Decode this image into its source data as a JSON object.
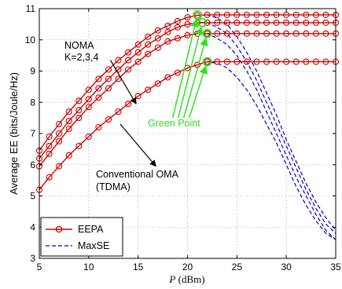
{
  "chart_data": {
    "type": "line",
    "xlabel_symbol": "P",
    "xlabel_unit": " (dBm)",
    "ylabel": "Average EE (bits/Joule/Hz)",
    "xlim": [
      5,
      35
    ],
    "ylim": [
      3,
      11
    ],
    "xticks": [
      5,
      10,
      15,
      20,
      25,
      30,
      35
    ],
    "yticks": [
      3,
      4,
      5,
      6,
      7,
      8,
      9,
      10,
      11
    ],
    "grid": true,
    "legend_position": "bottom-left",
    "colors": {
      "eepa": "#d00000",
      "maxse": "#0000d0",
      "green": "#33dd22"
    },
    "series": [
      {
        "name": "EEPA",
        "style": "solid-circle-markers",
        "curves": [
          {
            "x": [
              5,
              6,
              7,
              8,
              9,
              10,
              11,
              12,
              13,
              14,
              15,
              16,
              17,
              18,
              19,
              20,
              21,
              22,
              23,
              24,
              25,
              26,
              27,
              28,
              29,
              30,
              31,
              32,
              33,
              34,
              35
            ],
            "y": [
              6.45,
              6.9,
              7.3,
              7.7,
              8.05,
              8.4,
              8.75,
              9.05,
              9.35,
              9.6,
              9.85,
              10.1,
              10.3,
              10.45,
              10.6,
              10.72,
              10.78,
              10.8,
              10.8,
              10.8,
              10.8,
              10.8,
              10.8,
              10.8,
              10.8,
              10.8,
              10.8,
              10.8,
              10.8,
              10.8,
              10.8
            ]
          },
          {
            "x": [
              5,
              6,
              7,
              8,
              9,
              10,
              11,
              12,
              13,
              14,
              15,
              16,
              17,
              18,
              19,
              20,
              21,
              22,
              23,
              24,
              25,
              26,
              27,
              28,
              29,
              30,
              31,
              32,
              33,
              34,
              35
            ],
            "y": [
              6.2,
              6.6,
              7.0,
              7.4,
              7.75,
              8.1,
              8.45,
              8.75,
              9.05,
              9.35,
              9.6,
              9.85,
              10.05,
              10.25,
              10.4,
              10.5,
              10.55,
              10.55,
              10.55,
              10.55,
              10.55,
              10.55,
              10.55,
              10.55,
              10.55,
              10.55,
              10.55,
              10.55,
              10.55,
              10.55,
              10.55
            ]
          },
          {
            "x": [
              5,
              6,
              7,
              8,
              9,
              10,
              11,
              12,
              13,
              14,
              15,
              16,
              17,
              18,
              19,
              20,
              21,
              22,
              23,
              24,
              25,
              26,
              27,
              28,
              29,
              30,
              31,
              32,
              33,
              34,
              35
            ],
            "y": [
              5.95,
              6.35,
              6.75,
              7.15,
              7.5,
              7.85,
              8.15,
              8.45,
              8.75,
              9.05,
              9.3,
              9.55,
              9.75,
              9.95,
              10.05,
              10.15,
              10.2,
              10.2,
              10.2,
              10.2,
              10.2,
              10.2,
              10.2,
              10.2,
              10.2,
              10.2,
              10.2,
              10.2,
              10.2,
              10.2,
              10.2
            ]
          },
          {
            "x": [
              5,
              6,
              7,
              8,
              9,
              10,
              11,
              12,
              13,
              14,
              15,
              16,
              17,
              18,
              19,
              20,
              21,
              22,
              23,
              24,
              25,
              26,
              27,
              28,
              29,
              30,
              31,
              32,
              33,
              34,
              35
            ],
            "y": [
              5.2,
              5.6,
              5.95,
              6.3,
              6.6,
              6.9,
              7.2,
              7.45,
              7.7,
              7.95,
              8.2,
              8.4,
              8.6,
              8.8,
              8.95,
              9.1,
              9.2,
              9.3,
              9.3,
              9.3,
              9.3,
              9.3,
              9.3,
              9.3,
              9.3,
              9.3,
              9.3,
              9.3,
              9.3,
              9.3,
              9.3
            ]
          }
        ]
      },
      {
        "name": "MaxSE",
        "style": "dashed",
        "curves": [
          {
            "x": [
              20,
              21,
              22,
              23,
              24,
              25,
              26,
              27,
              28,
              29,
              30,
              31,
              32,
              33,
              34,
              35
            ],
            "y": [
              10.72,
              10.78,
              10.8,
              10.7,
              10.5,
              10.1,
              9.6,
              9.0,
              8.3,
              7.6,
              6.8,
              6.1,
              5.4,
              4.8,
              4.3,
              3.9
            ]
          },
          {
            "x": [
              20,
              21,
              22,
              23,
              24,
              25,
              26,
              27,
              28,
              29,
              30,
              31,
              32,
              33,
              34,
              35
            ],
            "y": [
              10.5,
              10.55,
              10.55,
              10.4,
              10.2,
              9.8,
              9.3,
              8.7,
              8.0,
              7.3,
              6.6,
              5.9,
              5.2,
              4.6,
              4.1,
              3.8
            ]
          },
          {
            "x": [
              20,
              21,
              22,
              23,
              24,
              25,
              26,
              27,
              28,
              29,
              30,
              31,
              32,
              33,
              34,
              35
            ],
            "y": [
              10.15,
              10.2,
              10.2,
              10.05,
              9.85,
              9.5,
              9.0,
              8.4,
              7.7,
              7.0,
              6.3,
              5.6,
              5.0,
              4.4,
              3.9,
              3.6
            ]
          },
          {
            "x": [
              20,
              21,
              22,
              23,
              24,
              25,
              26,
              27,
              28,
              29,
              30,
              31,
              32,
              33,
              34,
              35
            ],
            "y": [
              9.1,
              9.2,
              9.3,
              9.25,
              9.1,
              8.8,
              8.4,
              7.9,
              7.3,
              6.7,
              6.0,
              5.3,
              4.7,
              4.2,
              3.8,
              3.6
            ]
          }
        ]
      }
    ],
    "green_points": [
      {
        "x": 21,
        "y": 10.8
      },
      {
        "x": 21.5,
        "y": 10.55
      },
      {
        "x": 22,
        "y": 10.2
      },
      {
        "x": 22,
        "y": 9.3
      }
    ],
    "green_arrow_tail": {
      "x": 18.5,
      "y": 7.5
    },
    "annotations": {
      "noma_line1": "NOMA",
      "noma_line2": "K=2,3,4",
      "oma_line1": "Conventional OMA",
      "oma_line2": "(TDMA)",
      "green_label": "Green Point"
    },
    "annotation_arrows": {
      "noma": {
        "from": {
          "x": 12.2,
          "y": 9.35
        },
        "to": {
          "x": 14.8,
          "y": 7.95
        }
      },
      "oma": {
        "from": {
          "x": 13.2,
          "y": 7.3
        },
        "to": {
          "x": 16.8,
          "y": 5.95
        }
      }
    }
  }
}
